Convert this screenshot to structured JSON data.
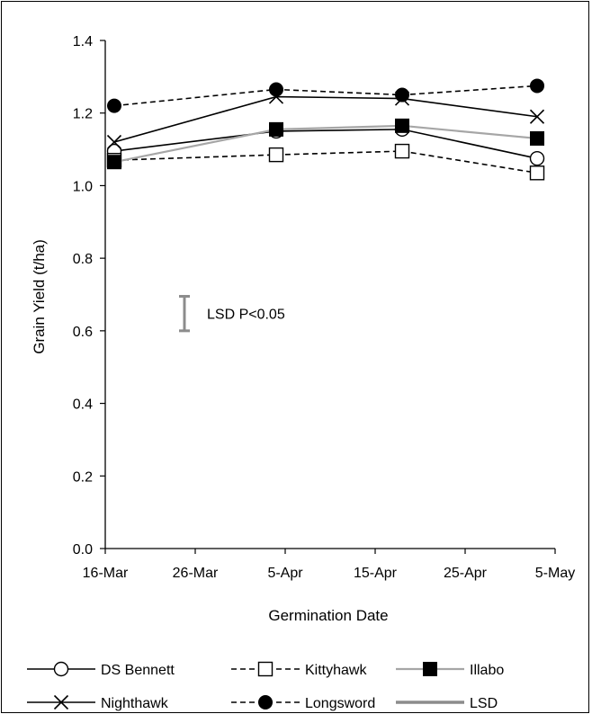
{
  "chart_data": {
    "type": "line",
    "xlabel": "Germination Date",
    "ylabel": "Grain Yield (t/ha)",
    "x_ticks": [
      "16-Mar",
      "26-Mar",
      "5-Apr",
      "15-Apr",
      "25-Apr",
      "5-May"
    ],
    "y_ticks": [
      "0.0",
      "0.2",
      "0.4",
      "0.6",
      "0.8",
      "1.0",
      "1.2",
      "1.4"
    ],
    "ylim": [
      0,
      1.4
    ],
    "xlim_days": [
      0,
      50
    ],
    "x_dates": [
      "2 Apr",
      "5 Apr"
    ],
    "x": [
      "17-Mar",
      "4-Apr",
      "18-Apr",
      "3-May"
    ],
    "series": [
      {
        "name": "DS Bennett",
        "marker": "open-circle",
        "line": "solid",
        "color": "#000000",
        "values": [
          1.095,
          1.15,
          1.155,
          1.075
        ]
      },
      {
        "name": "Kittyhawk",
        "marker": "open-square",
        "line": "dashed",
        "color": "#000000",
        "values": [
          1.07,
          1.085,
          1.095,
          1.035
        ]
      },
      {
        "name": "Illabo",
        "marker": "filled-square",
        "line": "solid-gray",
        "color": "#a6a6a6",
        "values": [
          1.065,
          1.155,
          1.165,
          1.13
        ]
      },
      {
        "name": "Nighthawk",
        "marker": "x",
        "line": "solid",
        "color": "#000000",
        "values": [
          1.12,
          1.245,
          1.24,
          1.19
        ]
      },
      {
        "name": "Longsword",
        "marker": "filled-circle",
        "line": "dashed",
        "color": "#000000",
        "values": [
          1.22,
          1.265,
          1.25,
          1.275
        ]
      }
    ],
    "lsd": {
      "label": "LSD P<0.05",
      "name": "LSD",
      "low": 0.6,
      "high": 0.695,
      "color": "#8c8c8c"
    },
    "x_day_offsets": [
      1,
      19,
      33,
      48
    ],
    "legend_position": "bottom",
    "grid": false
  }
}
